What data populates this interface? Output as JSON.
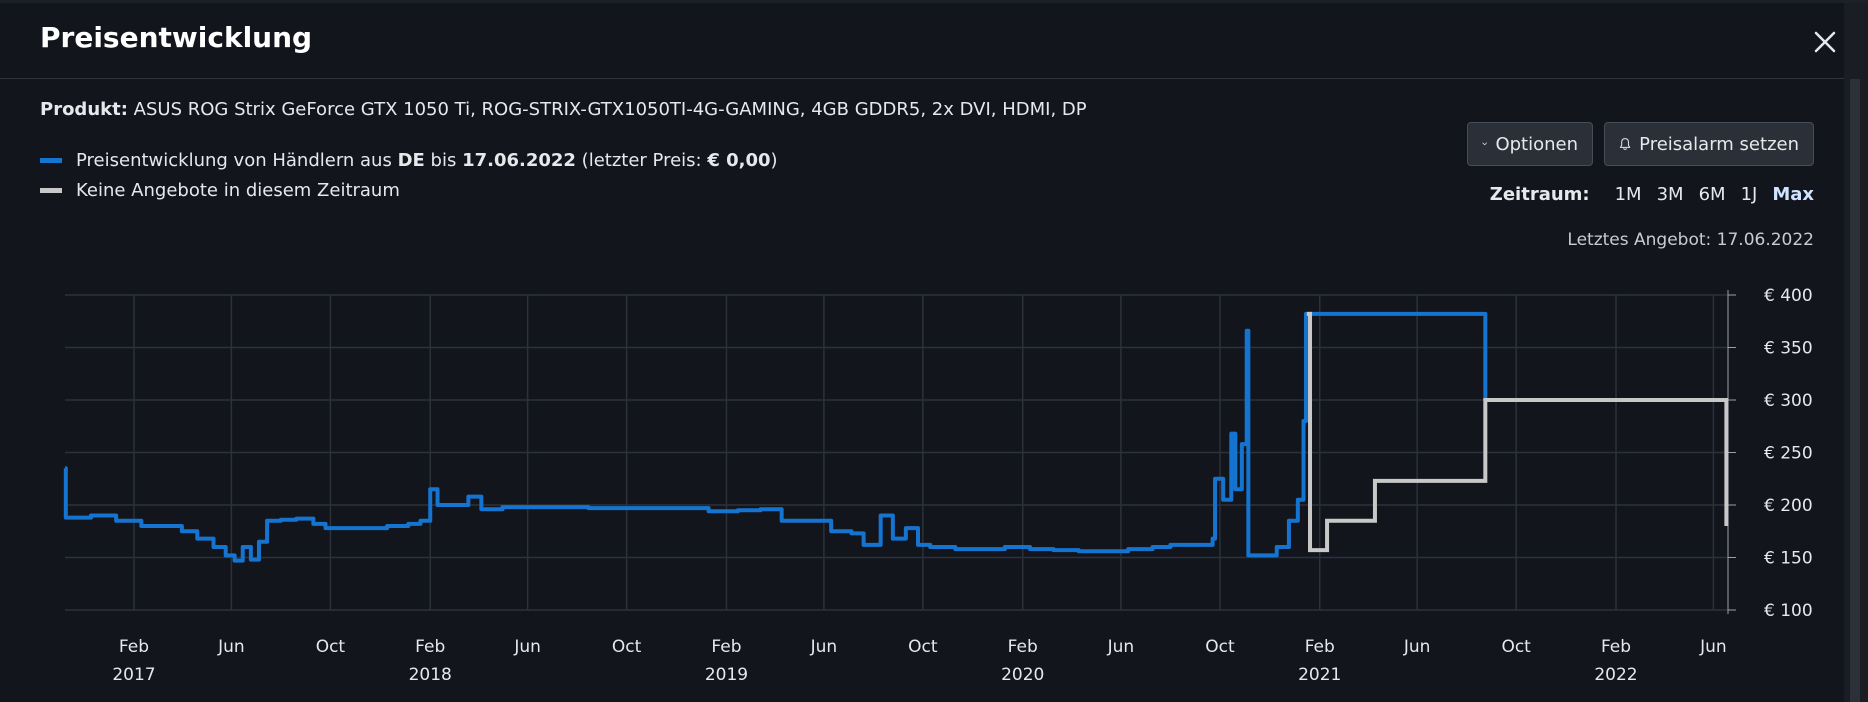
{
  "dialog": {
    "title": "Preisentwicklung",
    "close_icon": "close-icon"
  },
  "product": {
    "label": "Produkt:",
    "name": "ASUS ROG Strix GeForce GTX 1050 Ti, ROG-STRIX-GTX1050TI-4G-GAMING, 4GB GDDR5, 2x DVI, HDMI, DP"
  },
  "legend": {
    "series1_prefix": "Preisentwicklung von Händlern aus ",
    "series1_country": "DE",
    "series1_mid": " bis ",
    "series1_date": "17.06.2022",
    "series1_suffix_a": " (letzter Preis: ",
    "series1_price": "€ 0,00",
    "series1_suffix_b": ")",
    "series2": "Keine Angebote in diesem Zeitraum"
  },
  "buttons": {
    "options_label": "Optionen",
    "options_icon": "chevron-down-icon",
    "alarm_label": "Preisalarm setzen",
    "alarm_icon": "bell-icon"
  },
  "zeitraum": {
    "label": "Zeitraum:",
    "options": [
      "1M",
      "3M",
      "6M",
      "1J",
      "Max"
    ],
    "active": "Max"
  },
  "last_offer": "Letztes Angebot: 17.06.2022",
  "colors": {
    "price_line": "#1674d1",
    "no_offer_line": "#c8c8c8",
    "active_option": "#cfe3ff"
  },
  "chart_data": {
    "type": "line",
    "y_ticks": [
      "€ 100",
      "€ 150",
      "€ 200",
      "€ 250",
      "€ 300",
      "€ 350",
      "€ 400"
    ],
    "ylim": [
      100,
      400
    ],
    "xlim": [
      "2016-11-08",
      "2022-06-19"
    ],
    "x_ticks": [
      {
        "date": "2017-02-01",
        "label": "Feb",
        "year": "2017"
      },
      {
        "date": "2017-06-01",
        "label": "Jun"
      },
      {
        "date": "2017-10-01",
        "label": "Oct"
      },
      {
        "date": "2018-02-01",
        "label": "Feb",
        "year": "2018"
      },
      {
        "date": "2018-06-01",
        "label": "Jun"
      },
      {
        "date": "2018-10-01",
        "label": "Oct"
      },
      {
        "date": "2019-02-01",
        "label": "Feb",
        "year": "2019"
      },
      {
        "date": "2019-06-01",
        "label": "Jun"
      },
      {
        "date": "2019-10-01",
        "label": "Oct"
      },
      {
        "date": "2020-02-01",
        "label": "Feb",
        "year": "2020"
      },
      {
        "date": "2020-06-01",
        "label": "Jun"
      },
      {
        "date": "2020-10-01",
        "label": "Oct"
      },
      {
        "date": "2021-02-01",
        "label": "Feb",
        "year": "2021"
      },
      {
        "date": "2021-06-01",
        "label": "Jun"
      },
      {
        "date": "2021-10-01",
        "label": "Oct"
      },
      {
        "date": "2022-02-01",
        "label": "Feb",
        "year": "2022"
      },
      {
        "date": "2022-06-01",
        "label": "Jun"
      }
    ],
    "grid": true,
    "y_axis_position": "right",
    "series": [
      {
        "name": "Preisentwicklung von Händlern aus DE",
        "color": "#1674d1",
        "points": [
          [
            "2016-11-08",
            235
          ],
          [
            "2016-11-09",
            188
          ],
          [
            "2016-12-10",
            190
          ],
          [
            "2017-01-10",
            185
          ],
          [
            "2017-02-10",
            180
          ],
          [
            "2017-03-10",
            180
          ],
          [
            "2017-04-01",
            175
          ],
          [
            "2017-04-20",
            168
          ],
          [
            "2017-05-10",
            160
          ],
          [
            "2017-05-25",
            152
          ],
          [
            "2017-06-05",
            147
          ],
          [
            "2017-06-15",
            160
          ],
          [
            "2017-06-25",
            148
          ],
          [
            "2017-07-05",
            165
          ],
          [
            "2017-07-15",
            185
          ],
          [
            "2017-08-01",
            186
          ],
          [
            "2017-08-20",
            187
          ],
          [
            "2017-09-10",
            182
          ],
          [
            "2017-09-25",
            178
          ],
          [
            "2017-10-15",
            178
          ],
          [
            "2017-11-10",
            178
          ],
          [
            "2017-12-10",
            180
          ],
          [
            "2018-01-05",
            182
          ],
          [
            "2018-01-20",
            185
          ],
          [
            "2018-02-01",
            215
          ],
          [
            "2018-02-10",
            200
          ],
          [
            "2018-03-01",
            200
          ],
          [
            "2018-03-20",
            208
          ],
          [
            "2018-04-05",
            196
          ],
          [
            "2018-05-01",
            198
          ],
          [
            "2018-06-01",
            198
          ],
          [
            "2018-07-10",
            198
          ],
          [
            "2018-08-15",
            197
          ],
          [
            "2018-09-20",
            197
          ],
          [
            "2018-10-20",
            197
          ],
          [
            "2018-11-20",
            197
          ],
          [
            "2018-12-10",
            197
          ],
          [
            "2019-01-10",
            194
          ],
          [
            "2019-02-15",
            195
          ],
          [
            "2019-03-15",
            196
          ],
          [
            "2019-04-10",
            185
          ],
          [
            "2019-05-10",
            185
          ],
          [
            "2019-06-10",
            175
          ],
          [
            "2019-07-05",
            173
          ],
          [
            "2019-07-20",
            162
          ],
          [
            "2019-08-10",
            190
          ],
          [
            "2019-08-25",
            168
          ],
          [
            "2019-09-10",
            178
          ],
          [
            "2019-09-25",
            162
          ],
          [
            "2019-10-10",
            160
          ],
          [
            "2019-11-10",
            158
          ],
          [
            "2019-12-10",
            158
          ],
          [
            "2020-01-10",
            160
          ],
          [
            "2020-02-10",
            158
          ],
          [
            "2020-03-10",
            157
          ],
          [
            "2020-04-10",
            156
          ],
          [
            "2020-05-10",
            156
          ],
          [
            "2020-06-10",
            158
          ],
          [
            "2020-07-10",
            160
          ],
          [
            "2020-08-01",
            162
          ],
          [
            "2020-09-10",
            162
          ],
          [
            "2020-09-22",
            168
          ],
          [
            "2020-09-25",
            225
          ],
          [
            "2020-10-05",
            205
          ],
          [
            "2020-10-15",
            268
          ],
          [
            "2020-10-20",
            215
          ],
          [
            "2020-10-28",
            258
          ],
          [
            "2020-11-03",
            366
          ],
          [
            "2020-11-05",
            152
          ],
          [
            "2020-11-20",
            152
          ],
          [
            "2020-12-10",
            160
          ],
          [
            "2020-12-25",
            185
          ],
          [
            "2021-01-05",
            205
          ],
          [
            "2021-01-12",
            280
          ],
          [
            "2021-01-15",
            382
          ],
          [
            "2021-01-16",
            382
          ],
          [
            "2021-08-24",
            300
          ],
          [
            "2021-08-26",
            300
          ]
        ]
      },
      {
        "name": "Keine Angebote in diesem Zeitraum",
        "color": "#c8c8c8",
        "points": [
          [
            "2021-01-16",
            382
          ],
          [
            "2021-01-20",
            382
          ],
          [
            "2021-01-20",
            157
          ],
          [
            "2021-02-10",
            157
          ],
          [
            "2021-02-10",
            185
          ],
          [
            "2021-04-10",
            185
          ],
          [
            "2021-04-10",
            223
          ],
          [
            "2021-08-24",
            223
          ],
          [
            "2021-08-24",
            300
          ],
          [
            "2022-06-17",
            300
          ],
          [
            "2022-06-17",
            180
          ]
        ]
      }
    ]
  }
}
